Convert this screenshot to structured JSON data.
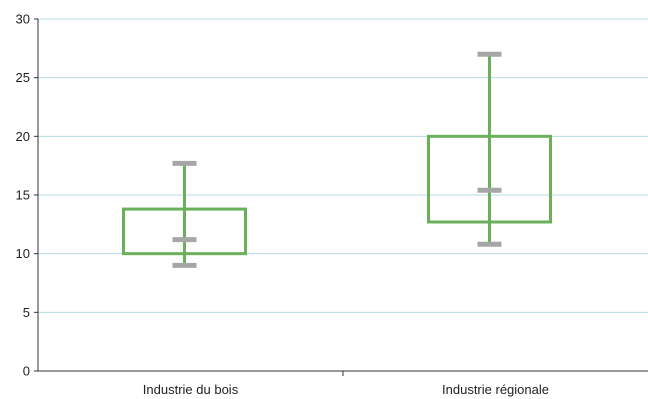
{
  "chart_data": {
    "type": "box",
    "title": "",
    "xlabel": "",
    "ylabel": "",
    "ylim": [
      0,
      30
    ],
    "yticks": [
      0,
      5,
      10,
      15,
      20,
      25,
      30
    ],
    "categories": [
      "Industrie du bois",
      "Industrie régionale"
    ],
    "boxes": [
      {
        "category": "Industrie du bois",
        "min": 9.0,
        "q1": 10.0,
        "median": 11.2,
        "q3": 13.8,
        "max": 17.7
      },
      {
        "category": "Industrie régionale",
        "min": 10.8,
        "q1": 12.7,
        "median": 15.4,
        "q3": 20.0,
        "max": 27.0
      }
    ],
    "grid": true,
    "legend": "none",
    "colors": {
      "box": "#6aaf5a",
      "whisker_cap": "#a6a6a6",
      "grid": "#b7dbe6",
      "axis": "#333333"
    }
  }
}
